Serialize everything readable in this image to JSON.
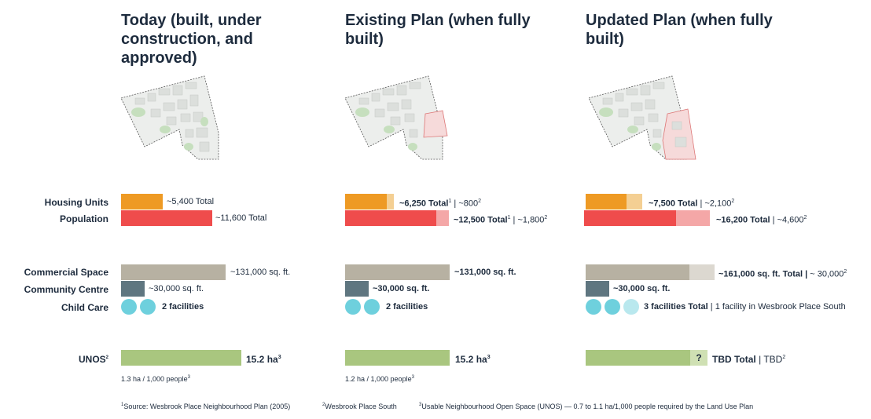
{
  "colors": {
    "housing": "#ee9a24",
    "housing_light": "#f4cf93",
    "population": "#ef4c4c",
    "population_light": "#f4a7a7",
    "commercial": "#b7b1a2",
    "commercial_light": "#dcd8d0",
    "community": "#5f7680",
    "childcare": "#6ed0dd",
    "childcare_light": "#b9e8ee",
    "unos": "#a9c67f",
    "unos_light": "#cfe0b3"
  },
  "columns": [
    {
      "title_line1": "Today (built, under",
      "title_line2": "construction, and approved)"
    },
    {
      "title_line1": "Existing Plan (when fully",
      "title_line2": "built)"
    },
    {
      "title_line1": "Updated Plan (when fully",
      "title_line2": "built)"
    }
  ],
  "labels": {
    "housing": "Housing Units",
    "population": "Population",
    "commercial": "Commercial Space",
    "community": "Community Centre",
    "childcare": "Child Care",
    "unos": "UNOS",
    "unos_sup": "2"
  },
  "chart_data": {
    "type": "bar",
    "categories": [
      "Today (built, under construction, and approved)",
      "Existing Plan (when fully built)",
      "Updated Plan (when fully built)"
    ],
    "series": [
      {
        "name": "Housing Units",
        "values": [
          5400,
          6250,
          7500
        ],
        "additional": [
          0,
          800,
          2100
        ]
      },
      {
        "name": "Population",
        "values": [
          11600,
          12500,
          16200
        ],
        "additional": [
          0,
          1800,
          4600
        ]
      },
      {
        "name": "Commercial Space (sq. ft.)",
        "values": [
          131000,
          131000,
          161000
        ],
        "additional": [
          0,
          0,
          30000
        ]
      },
      {
        "name": "Community Centre (sq. ft.)",
        "values": [
          30000,
          30000,
          30000
        ]
      },
      {
        "name": "Child Care (facilities)",
        "values": [
          2,
          2,
          3
        ],
        "additional": [
          0,
          0,
          1
        ]
      },
      {
        "name": "UNOS (ha)",
        "values": [
          15.2,
          15.2,
          null
        ]
      }
    ]
  },
  "text": {
    "c0_housing": "~5,400 Total",
    "c0_pop": "~11,600 Total",
    "c0_comm": "~131,000 sq. ft.",
    "c0_cc": "~30,000 sq. ft.",
    "c0_care": "2 facilities",
    "c0_unos": "15.2 ha",
    "c0_unos_sup": "3",
    "c0_note": "1.3 ha / 1,000 people",
    "c1_housing_bold": "~6,250 Total",
    "c1_housing_rest": " | ~800",
    "c1_pop_bold": "~12,500 Total",
    "c1_pop_rest": " | ~1,800",
    "c1_comm": "~131,000 sq. ft.",
    "c1_cc": "~30,000 sq. ft.",
    "c1_care": "2 facilities",
    "c1_unos": "15.2 ha",
    "c1_unos_sup": "3",
    "c1_note": "1.2 ha / 1,000 people",
    "c2_housing_bold": "~7,500 Total",
    "c2_housing_rest": " | ~2,100",
    "c2_pop_bold": "~16,200 Total",
    "c2_pop_rest": " | ~4,600",
    "c2_comm_bold": "~161,000 sq. ft. Total |",
    "c2_comm_rest": "  ~ 30,000",
    "c2_cc": "~30,000 sq. ft.",
    "c2_care_bold": "3 facilities Total",
    "c2_care_rest": " | 1 facility in Wesbrook Place South",
    "c2_unos_bold": "TBD Total",
    "c2_unos_rest": " | TBD",
    "qmark": "?",
    "sup1": "1",
    "sup2": "2",
    "sup3": "3"
  },
  "footnotes": {
    "f1": "Source: Wesbrook Place Neighbourhood Plan (2005)",
    "f2": "Wesbrook Place South",
    "f3": "Usable Neighbourhood Open Space (UNOS) — 0.7 to 1.1 ha/1,000 people required by the Land Use Plan"
  }
}
